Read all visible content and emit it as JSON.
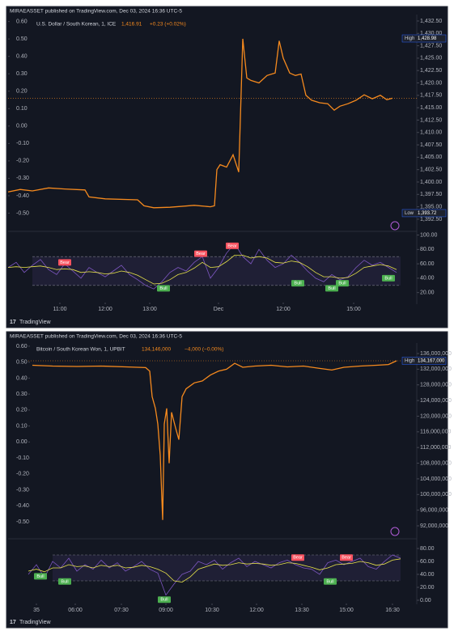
{
  "panels": [
    {
      "published": "MIRAEASSET published on TradingView.com, Dec 03, 2024 16:36 UTC-5",
      "footer": "TradingView"
    },
    {
      "published": "MIRAEASSET published on TradingView.com, Dec 03, 2024 16:36 UTC-5",
      "footer": "TradingView"
    }
  ],
  "chart_data": [
    {
      "type": "line",
      "title": "U.S. Dollar / South Korean, 1, ICE",
      "last_value": 1416.91,
      "last_value_label": "1,416.91",
      "change_label": "+0.23 (+0.02%)",
      "xlim": [
        0,
        485
      ],
      "xticks": [
        {
          "value": 64,
          "label": "11:00"
        },
        {
          "value": 120,
          "label": "12:00"
        },
        {
          "value": 175,
          "label": "13:00"
        },
        {
          "value": 260,
          "label": "Dec"
        },
        {
          "value": 340,
          "label": "12:00"
        },
        {
          "value": 427,
          "label": "15:00"
        }
      ],
      "ylim": [
        -0.6,
        0.64
      ],
      "yticks": [
        {
          "value": 0.6,
          "label": "0.60"
        },
        {
          "value": 0.5,
          "label": "0.50"
        },
        {
          "value": 0.4,
          "label": "0.40"
        },
        {
          "value": 0.3,
          "label": "0.30"
        },
        {
          "value": 0.2,
          "label": "0.20"
        },
        {
          "value": 0.1,
          "label": "0.10"
        },
        {
          "value": 0,
          "label": "0.00"
        },
        {
          "value": -0.1,
          "label": "-0.10"
        },
        {
          "value": -0.2,
          "label": "-0.20"
        },
        {
          "value": -0.3,
          "label": "-0.30"
        },
        {
          "value": -0.4,
          "label": "-0.40"
        },
        {
          "value": -0.5,
          "label": "-0.50"
        }
      ],
      "y2lim": [
        1390.2,
        1433.8
      ],
      "y2ticks": [
        {
          "value": 1432.5,
          "label": "1,432.50"
        },
        {
          "value": 1430,
          "label": "1,430.00"
        },
        {
          "value": 1427.5,
          "label": "1,427.50"
        },
        {
          "value": 1425,
          "label": "1,425.00"
        },
        {
          "value": 1422.5,
          "label": "1,422.50"
        },
        {
          "value": 1420,
          "label": "1,420.00"
        },
        {
          "value": 1417.5,
          "label": "1,417.50"
        },
        {
          "value": 1415,
          "label": "1,415.00"
        },
        {
          "value": 1412.5,
          "label": "1,412.50"
        },
        {
          "value": 1410,
          "label": "1,410.00"
        },
        {
          "value": 1407.5,
          "label": "1,407.50"
        },
        {
          "value": 1405,
          "label": "1,405.00"
        },
        {
          "value": 1402.5,
          "label": "1,402.50"
        },
        {
          "value": 1400,
          "label": "1,400.00"
        },
        {
          "value": 1397.5,
          "label": "1,397.50"
        },
        {
          "value": 1395,
          "label": "1,395.00"
        },
        {
          "value": 1392.5,
          "label": "1,392.50"
        }
      ],
      "series": [
        {
          "color": "#f68a1e",
          "axis": "y2",
          "x": [
            0,
            15,
            30,
            50,
            70,
            95,
            100,
            120,
            160,
            168,
            180,
            200,
            230,
            250,
            255,
            258,
            262,
            270,
            278,
            285,
            290,
            295,
            300,
            310,
            320,
            330,
            335,
            340,
            348,
            355,
            362,
            368,
            375,
            385,
            395,
            403,
            410,
            420,
            430,
            440,
            450,
            460,
            468,
            475
          ],
          "values": [
            1398.0,
            1398.5,
            1398.2,
            1398.8,
            1398.6,
            1398.4,
            1397.0,
            1396.6,
            1396.4,
            1395.2,
            1394.8,
            1394.9,
            1395.3,
            1395.0,
            1395.2,
            1402.5,
            1403.5,
            1403.0,
            1405.5,
            1402.0,
            1428.9,
            1421.0,
            1420.5,
            1420.0,
            1421.5,
            1422.0,
            1428.5,
            1425.0,
            1422.0,
            1421.5,
            1421.8,
            1417.5,
            1416.5,
            1416.0,
            1415.8,
            1414.5,
            1415.3,
            1415.8,
            1416.5,
            1417.6,
            1416.8,
            1417.5,
            1416.6,
            1416.91
          ]
        }
      ],
      "markers": [
        {
          "label": "High",
          "value": 1428.98,
          "value_label": "1,428.98"
        },
        {
          "label": "Low",
          "value": 1393.72,
          "value_label": "1,393.72"
        }
      ]
    },
    {
      "type": "line",
      "y_axis_side": "right",
      "xlim": [
        0,
        485
      ],
      "ylim": [
        5,
        104
      ],
      "yticks": [
        {
          "value": 100,
          "label": "100.00"
        },
        {
          "value": 80,
          "label": "80.00"
        },
        {
          "value": 60,
          "label": "60.00"
        },
        {
          "value": 40,
          "label": "40.00"
        },
        {
          "value": 20,
          "label": "20.00"
        }
      ],
      "band": [
        30,
        70
      ],
      "x": [
        0,
        10,
        20,
        30,
        40,
        50,
        60,
        70,
        80,
        90,
        100,
        110,
        120,
        130,
        140,
        150,
        160,
        170,
        180,
        190,
        200,
        210,
        220,
        230,
        240,
        250,
        260,
        270,
        280,
        290,
        300,
        310,
        320,
        330,
        340,
        350,
        360,
        370,
        380,
        390,
        400,
        410,
        420,
        430,
        440,
        450,
        460,
        470,
        480
      ],
      "series": [
        {
          "color": "#7e57c2",
          "values": [
            55,
            62,
            48,
            58,
            66,
            52,
            45,
            60,
            50,
            40,
            55,
            48,
            42,
            50,
            58,
            45,
            38,
            30,
            25,
            35,
            48,
            55,
            50,
            62,
            70,
            40,
            55,
            75,
            88,
            70,
            60,
            80,
            65,
            55,
            60,
            72,
            62,
            50,
            40,
            35,
            45,
            38,
            42,
            55,
            65,
            58,
            62,
            55,
            48
          ]
        },
        {
          "color": "#e8e34a",
          "values": [
            55,
            56,
            55,
            56,
            57,
            55,
            52,
            53,
            52,
            48,
            49,
            48,
            46,
            47,
            50,
            48,
            44,
            38,
            32,
            33,
            38,
            45,
            48,
            54,
            62,
            55,
            56,
            63,
            72,
            72,
            68,
            70,
            68,
            62,
            61,
            64,
            62,
            56,
            48,
            42,
            42,
            40,
            41,
            47,
            55,
            57,
            59,
            57,
            52
          ]
        }
      ],
      "signals": [
        {
          "label": "Bear",
          "x": 70,
          "y": 62
        },
        {
          "label": "Bear",
          "x": 238,
          "y": 74
        },
        {
          "label": "Bear",
          "x": 277,
          "y": 85
        },
        {
          "label": "Bull",
          "x": 192,
          "y": 26
        },
        {
          "label": "Bull",
          "x": 358,
          "y": 33
        },
        {
          "label": "Bull",
          "x": 400,
          "y": 26
        },
        {
          "label": "Bull",
          "x": 413,
          "y": 33
        },
        {
          "label": "Bull",
          "x": 470,
          "y": 40
        }
      ]
    },
    {
      "type": "line",
      "title": "Bitcoin / South Korean Won, 1, UPBIT",
      "last_value": 134146000,
      "last_value_label": "134,146,000",
      "change_label": "−4,000 (−0.00%)",
      "xlim": [
        0,
        460
      ],
      "xticks": [
        {
          "value": 10,
          "label": "35"
        },
        {
          "value": 58,
          "label": "06:00"
        },
        {
          "value": 115,
          "label": "07:30"
        },
        {
          "value": 170,
          "label": "09:00"
        },
        {
          "value": 227,
          "label": "10:30"
        },
        {
          "value": 282,
          "label": "12:00"
        },
        {
          "value": 338,
          "label": "13:30"
        },
        {
          "value": 393,
          "label": "15:00"
        },
        {
          "value": 450,
          "label": "16:30"
        }
      ],
      "ylim": [
        -0.586,
        0.62
      ],
      "yticks": [
        {
          "value": 0.6,
          "label": "0.60"
        },
        {
          "value": 0.5,
          "label": "0.50"
        },
        {
          "value": 0.4,
          "label": "0.40"
        },
        {
          "value": 0.3,
          "label": "0.30"
        },
        {
          "value": 0.2,
          "label": "0.20"
        },
        {
          "value": 0.1,
          "label": "0.10"
        },
        {
          "value": 0,
          "label": "0.00"
        },
        {
          "value": -0.1,
          "label": "-0.10"
        },
        {
          "value": -0.2,
          "label": "-0.20"
        },
        {
          "value": -0.3,
          "label": "-0.30"
        },
        {
          "value": -0.4,
          "label": "-0.40"
        },
        {
          "value": -0.5,
          "label": "-0.50"
        }
      ],
      "y2lim": [
        89520000,
        138690000
      ],
      "y2ticks": [
        {
          "value": 136000000,
          "label": "136,000,000"
        },
        {
          "value": 132000000,
          "label": "132,000,000"
        },
        {
          "value": 128000000,
          "label": "128,000,000"
        },
        {
          "value": 124000000,
          "label": "124,000,000"
        },
        {
          "value": 120000000,
          "label": "120,000,000"
        },
        {
          "value": 116000000,
          "label": "116,000,000"
        },
        {
          "value": 112000000,
          "label": "112,000,000"
        },
        {
          "value": 108000000,
          "label": "108,000,000"
        },
        {
          "value": 104000000,
          "label": "104,000,000"
        },
        {
          "value": 100000000,
          "label": "100,000,000"
        },
        {
          "value": 96000000,
          "label": "96,000,000"
        },
        {
          "value": 92000000,
          "label": "92,000,000"
        }
      ],
      "series": [
        {
          "color": "#f68a1e",
          "axis": "y2",
          "x": [
            5,
            30,
            60,
            90,
            120,
            145,
            150,
            153,
            157,
            160,
            163,
            166,
            168,
            171,
            174,
            177,
            182,
            186,
            190,
            195,
            205,
            215,
            225,
            235,
            245,
            255,
            265,
            280,
            300,
            320,
            340,
            360,
            375,
            390,
            410,
            430,
            445,
            455
          ],
          "values": [
            133000000,
            132800000,
            132700000,
            132800000,
            132600000,
            132400000,
            131500000,
            125000000,
            122000000,
            118000000,
            110000000,
            93500000,
            118000000,
            122000000,
            108000000,
            121000000,
            117000000,
            114000000,
            125000000,
            127000000,
            128500000,
            129000000,
            130500000,
            131500000,
            132000000,
            133500000,
            132500000,
            132800000,
            133000000,
            132600000,
            132800000,
            132200000,
            131800000,
            132500000,
            132800000,
            133000000,
            133200000,
            134146000
          ]
        }
      ],
      "markers": [
        {
          "label": "High",
          "value": 134167000,
          "value_label": "134,167,000"
        }
      ]
    },
    {
      "type": "line",
      "y_axis_side": "right",
      "xlim": [
        0,
        460
      ],
      "ylim": [
        -5,
        92.5
      ],
      "yticks": [
        {
          "value": 80,
          "label": "80.00"
        },
        {
          "value": 60,
          "label": "60.00"
        },
        {
          "value": 40,
          "label": "40.00"
        },
        {
          "value": 20,
          "label": "20.00"
        },
        {
          "value": 0,
          "label": "0.00"
        }
      ],
      "band": [
        30,
        70
      ],
      "x": [
        0,
        10,
        20,
        30,
        40,
        50,
        60,
        70,
        80,
        90,
        100,
        110,
        120,
        130,
        140,
        150,
        160,
        170,
        180,
        190,
        200,
        210,
        220,
        230,
        240,
        250,
        260,
        270,
        280,
        290,
        300,
        310,
        320,
        330,
        340,
        350,
        360,
        370,
        380,
        390,
        400,
        410,
        420,
        430,
        440,
        450,
        460
      ],
      "series": [
        {
          "color": "#7e57c2",
          "values": [
            40,
            55,
            35,
            60,
            50,
            65,
            45,
            55,
            48,
            62,
            50,
            58,
            45,
            52,
            60,
            48,
            42,
            8,
            25,
            40,
            45,
            60,
            55,
            62,
            48,
            58,
            65,
            52,
            60,
            55,
            50,
            58,
            62,
            55,
            50,
            48,
            40,
            58,
            62,
            55,
            60,
            65,
            52,
            48,
            60,
            70,
            65
          ]
        },
        {
          "color": "#e8e34a",
          "values": [
            45,
            48,
            44,
            50,
            50,
            55,
            52,
            53,
            50,
            54,
            52,
            54,
            50,
            51,
            54,
            52,
            48,
            42,
            30,
            28,
            36,
            48,
            52,
            56,
            54,
            55,
            58,
            56,
            57,
            56,
            54,
            55,
            58,
            57,
            54,
            51,
            47,
            50,
            55,
            56,
            57,
            60,
            58,
            54,
            56,
            62,
            64
          ]
        }
      ],
      "signals": [
        {
          "label": "Bull",
          "x": 15,
          "y": 37
        },
        {
          "label": "Bull",
          "x": 45,
          "y": 29
        },
        {
          "label": "Bull",
          "x": 168,
          "y": 1
        },
        {
          "label": "Bull",
          "x": 373,
          "y": 29
        },
        {
          "label": "Bear",
          "x": 333,
          "y": 66
        },
        {
          "label": "Bear",
          "x": 393,
          "y": 66
        }
      ]
    }
  ]
}
